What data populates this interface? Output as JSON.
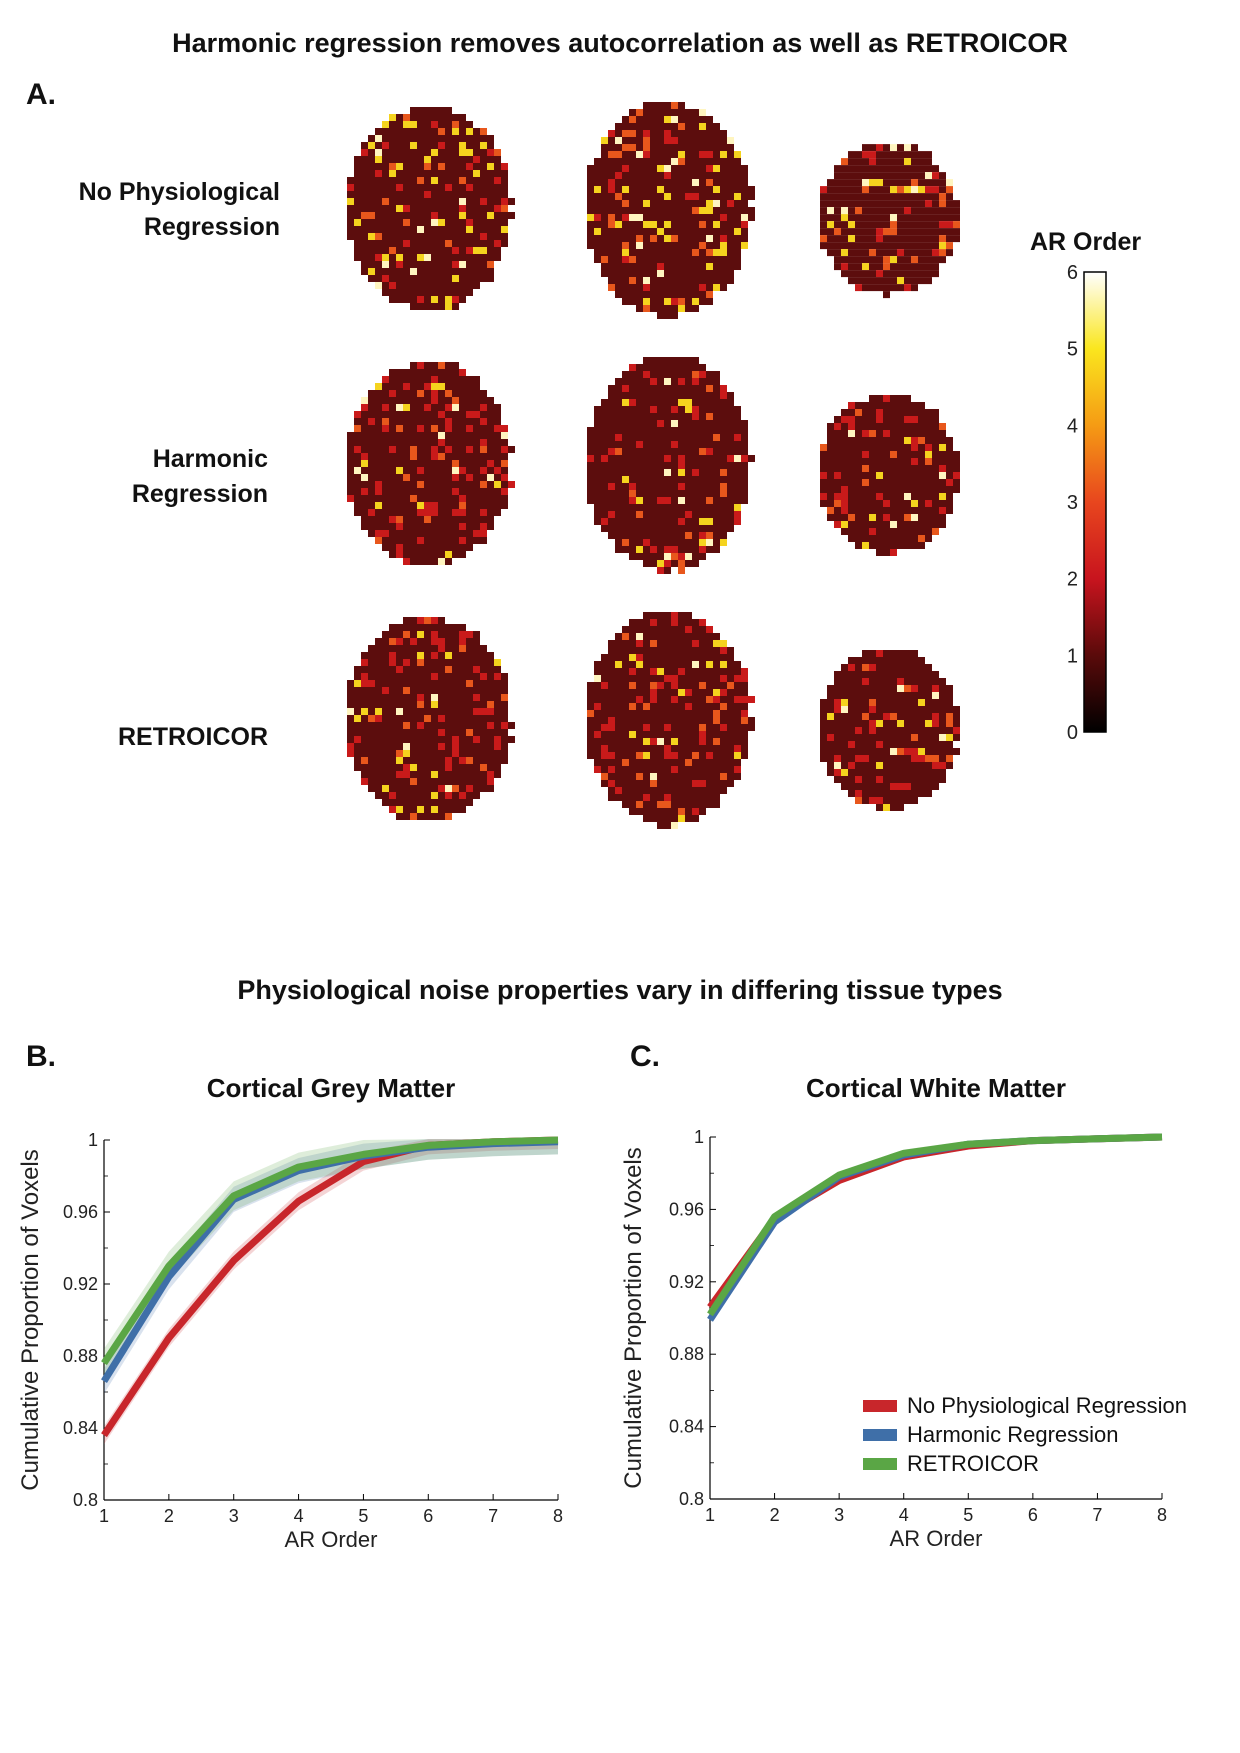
{
  "figure": {
    "title_top": "Harmonic regression removes autocorrelation as well as RETROICOR",
    "title_bottom": "Physiological noise properties vary in differing tissue types",
    "panel_a": "A.",
    "panel_b": "B.",
    "panel_c": "C."
  },
  "brain_maps": {
    "rows": [
      {
        "label_line1": "No Physiological",
        "label_line2": "Regression",
        "level": 0
      },
      {
        "label_line1": "Harmonic",
        "label_line2": "Regression",
        "level": 1
      },
      {
        "label_line1": "",
        "label_line2": "RETROICOR",
        "level": 2
      }
    ],
    "colorbar": {
      "title": "AR Order",
      "ticks": [
        "0",
        "1",
        "2",
        "3",
        "4",
        "5",
        "6"
      ],
      "colors": [
        "#000000",
        "#5a0a0a",
        "#c8141e",
        "#e8461e",
        "#f59b14",
        "#fae61e",
        "#ffffff"
      ]
    },
    "colors": {
      "background": "#5c0d0d",
      "speck_red": "#c91a1a",
      "speck_orange": "#e8571c",
      "speck_yellow": "#f5d31e",
      "speck_white": "#fff5c0"
    }
  },
  "chart_data": [
    {
      "type": "line",
      "title": "Cortical Grey Matter",
      "xlabel": "AR Order",
      "ylabel": "Cumulative Proportion of Voxels",
      "x": [
        1,
        2,
        3,
        4,
        5,
        6,
        7,
        8
      ],
      "xlim": [
        1,
        8
      ],
      "ylim": [
        0.8,
        1.0
      ],
      "yticks": [
        "0.8",
        "0.84",
        "0.88",
        "0.92",
        "0.96",
        "1"
      ],
      "xticks": [
        "1",
        "2",
        "3",
        "4",
        "5",
        "6",
        "7",
        "8"
      ],
      "series": [
        {
          "name": "No Physiological Regression",
          "color": "#c8262b",
          "values": [
            0.836,
            0.89,
            0.933,
            0.966,
            0.988,
            0.997,
            0.999,
            1.0
          ],
          "band": 0.005
        },
        {
          "name": "Harmonic Regression",
          "color": "#3f6fa8",
          "values": [
            0.866,
            0.924,
            0.967,
            0.983,
            0.991,
            0.996,
            0.998,
            0.999
          ],
          "band": 0.007
        },
        {
          "name": "RETROICOR",
          "color": "#5aa645",
          "values": [
            0.876,
            0.93,
            0.969,
            0.985,
            0.992,
            0.997,
            0.999,
            1.0
          ],
          "band": 0.008
        }
      ]
    },
    {
      "type": "line",
      "title": "Cortical White Matter",
      "xlabel": "AR Order",
      "ylabel": "Cumulative Proportion of Voxels",
      "x": [
        1,
        2,
        3,
        4,
        5,
        6,
        7,
        8
      ],
      "xlim": [
        1,
        8
      ],
      "ylim": [
        0.8,
        1.0
      ],
      "yticks": [
        "0.8",
        "0.84",
        "0.88",
        "0.92",
        "0.96",
        "1"
      ],
      "xticks": [
        "1",
        "2",
        "3",
        "4",
        "5",
        "6",
        "7",
        "8"
      ],
      "legend": "bottom-right",
      "series": [
        {
          "name": "No Physiological Regression",
          "color": "#c8262b",
          "values": [
            0.906,
            0.955,
            0.976,
            0.989,
            0.995,
            0.998,
            0.999,
            1.0
          ],
          "band": 0.002
        },
        {
          "name": "Harmonic Regression",
          "color": "#3f6fa8",
          "values": [
            0.899,
            0.953,
            0.978,
            0.99,
            0.996,
            0.998,
            0.999,
            1.0
          ],
          "band": 0.002
        },
        {
          "name": "RETROICOR",
          "color": "#5aa645",
          "values": [
            0.902,
            0.956,
            0.979,
            0.991,
            0.996,
            0.998,
            0.999,
            1.0
          ],
          "band": 0.002
        }
      ]
    }
  ]
}
